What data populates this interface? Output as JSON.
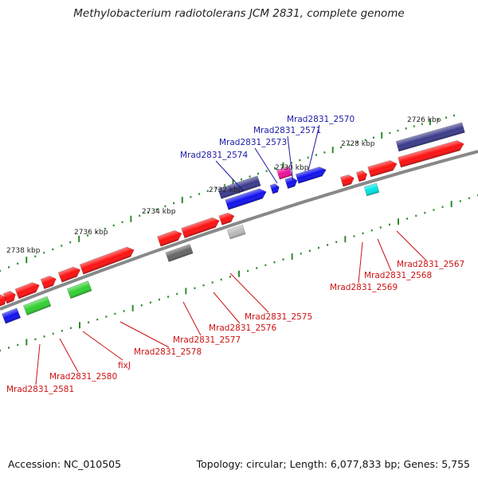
{
  "title": "Methylobacterium radiotolerans JCM 2831, complete genome",
  "footer": {
    "accession": "Accession: NC_010505",
    "summary": "Topology: circular; Length: 6,077,833 bp; Genes: 5,755"
  },
  "colors": {
    "backbone": "#888888",
    "tick": "#2e8b2e",
    "label_top": "#1a1aa6",
    "label_bottom": "#cc1111",
    "red": "#ff1010",
    "blue": "#1010ee",
    "purple": "#3a3a8c",
    "green": "#30d030",
    "gray": "#666666",
    "lightgray": "#bbbbbb",
    "magenta": "#ee1199",
    "cyan": "#00e5e5"
  },
  "scale": {
    "ticks": [
      {
        "label": "2726 kbp"
      },
      {
        "label": "2728 kbp"
      },
      {
        "label": "2730 kbp"
      },
      {
        "label": "2732 kbp"
      },
      {
        "label": "2734 kbp"
      },
      {
        "label": "2736 kbp"
      },
      {
        "label": "2738 kbp"
      }
    ]
  },
  "genes_top": [
    {
      "label": "Mrad2831_2570"
    },
    {
      "label": "Mrad2831_2571"
    },
    {
      "label": "Mrad2831_2573"
    },
    {
      "label": "Mrad2831_2574"
    }
  ],
  "genes_bottom": [
    {
      "label": "Mrad2831_2567"
    },
    {
      "label": "Mrad2831_2568"
    },
    {
      "label": "Mrad2831_2569"
    },
    {
      "label": "Mrad2831_2575"
    },
    {
      "label": "Mrad2831_2576"
    },
    {
      "label": "Mrad2831_2577"
    },
    {
      "label": "Mrad2831_2578"
    },
    {
      "label": "fixJ"
    },
    {
      "label": "Mrad2831_2580"
    },
    {
      "label": "Mrad2831_2581"
    }
  ]
}
